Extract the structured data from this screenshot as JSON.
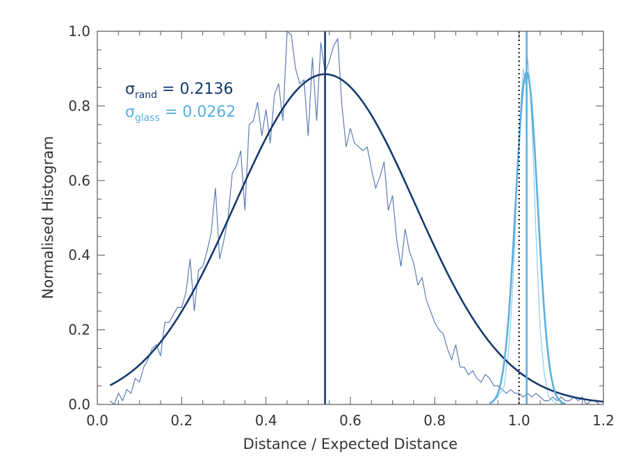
{
  "chart_data": {
    "type": "line",
    "xlabel": "Distance / Expected Distance",
    "ylabel": "Normalised Histogram",
    "xlim": [
      0.0,
      1.2
    ],
    "ylim": [
      0.0,
      1.0
    ],
    "x_ticks": [
      "0.0",
      "0.2",
      "0.4",
      "0.6",
      "0.8",
      "1.0",
      "1.2"
    ],
    "y_ticks": [
      "0.0",
      "0.2",
      "0.4",
      "0.6",
      "0.8",
      "1.0"
    ],
    "colors": {
      "rand": "#14386e",
      "glass": "#5aaede",
      "rand_hist": "#5a7ab4",
      "glass_hist": "#8ec8ec",
      "frame": "#555555"
    },
    "annotations": [
      {
        "symbol": "σ",
        "subscript": "rand",
        "text": " = 0.2136",
        "series": "rand"
      },
      {
        "symbol": "σ",
        "subscript": "glass",
        "text": " = 0.0262",
        "series": "glass"
      }
    ],
    "reference_line": {
      "x": 1.0,
      "style": "dotted",
      "color": "#000000"
    },
    "series": [
      {
        "name": "rand histogram",
        "style": "thin",
        "x": [
          0.03,
          0.04,
          0.05,
          0.06,
          0.07,
          0.08,
          0.09,
          0.1,
          0.11,
          0.12,
          0.13,
          0.14,
          0.15,
          0.16,
          0.17,
          0.18,
          0.19,
          0.2,
          0.21,
          0.22,
          0.23,
          0.24,
          0.25,
          0.26,
          0.27,
          0.28,
          0.29,
          0.3,
          0.31,
          0.32,
          0.33,
          0.34,
          0.35,
          0.36,
          0.37,
          0.38,
          0.39,
          0.4,
          0.41,
          0.42,
          0.43,
          0.44,
          0.45,
          0.46,
          0.47,
          0.48,
          0.49,
          0.5,
          0.51,
          0.52,
          0.53,
          0.54,
          0.55,
          0.56,
          0.57,
          0.58,
          0.59,
          0.6,
          0.61,
          0.62,
          0.63,
          0.64,
          0.65,
          0.66,
          0.67,
          0.68,
          0.69,
          0.7,
          0.71,
          0.72,
          0.73,
          0.74,
          0.75,
          0.76,
          0.77,
          0.78,
          0.79,
          0.8,
          0.81,
          0.82,
          0.83,
          0.84,
          0.85,
          0.86,
          0.87,
          0.88,
          0.89,
          0.9,
          0.91,
          0.92,
          0.93,
          0.94,
          0.95,
          0.96,
          0.97,
          0.98,
          0.99,
          1.0,
          1.01,
          1.02,
          1.03,
          1.04,
          1.05,
          1.06,
          1.07,
          1.08,
          1.09,
          1.1,
          1.11,
          1.12,
          1.13,
          1.14,
          1.15,
          1.16,
          1.17,
          1.18,
          1.19,
          1.2
        ],
        "y": [
          0.01,
          0.0,
          0.03,
          0.01,
          0.04,
          0.03,
          0.07,
          0.06,
          0.1,
          0.12,
          0.15,
          0.16,
          0.13,
          0.22,
          0.22,
          0.24,
          0.26,
          0.26,
          0.3,
          0.39,
          0.25,
          0.36,
          0.37,
          0.41,
          0.46,
          0.58,
          0.39,
          0.44,
          0.5,
          0.62,
          0.64,
          0.68,
          0.52,
          0.75,
          0.76,
          0.81,
          0.72,
          0.79,
          0.7,
          0.83,
          0.86,
          0.76,
          1.0,
          0.99,
          0.9,
          0.86,
          0.87,
          0.72,
          0.93,
          0.76,
          0.97,
          0.89,
          0.92,
          0.96,
          0.98,
          0.8,
          0.69,
          0.74,
          0.7,
          0.69,
          0.68,
          0.69,
          0.63,
          0.58,
          0.61,
          0.65,
          0.52,
          0.56,
          0.44,
          0.37,
          0.47,
          0.41,
          0.38,
          0.32,
          0.34,
          0.28,
          0.25,
          0.22,
          0.2,
          0.19,
          0.15,
          0.12,
          0.16,
          0.1,
          0.1,
          0.08,
          0.09,
          0.07,
          0.06,
          0.08,
          0.07,
          0.05,
          0.05,
          0.04,
          0.03,
          0.04,
          0.03,
          0.03,
          0.02,
          0.03,
          0.02,
          0.03,
          0.02,
          0.01,
          0.01,
          0.02,
          0.01,
          0.02,
          0.01,
          0.01,
          0.02,
          0.01,
          0.02,
          0.0,
          0.01,
          0.01,
          0.0,
          0.0
        ]
      },
      {
        "name": "rand gaussian fit",
        "style": "thick",
        "amplitude": 0.885,
        "mean": 0.54,
        "sigma": 0.2136,
        "x_range": [
          0.03,
          1.2
        ]
      },
      {
        "name": "rand mean",
        "style": "vertical",
        "x": 0.54
      },
      {
        "name": "glass histogram",
        "style": "thin",
        "x": [
          0.93,
          0.94,
          0.95,
          0.96,
          0.965,
          0.97,
          0.975,
          0.98,
          0.985,
          0.99,
          0.995,
          1.0,
          1.005,
          1.01,
          1.015,
          1.02,
          1.025,
          1.03,
          1.035,
          1.04,
          1.045,
          1.05,
          1.055,
          1.06,
          1.065,
          1.07,
          1.08,
          1.09,
          1.1
        ],
        "y": [
          0.0,
          0.01,
          0.02,
          0.04,
          0.05,
          0.1,
          0.14,
          0.22,
          0.32,
          0.44,
          0.6,
          0.7,
          0.82,
          0.9,
          0.86,
          0.93,
          0.87,
          0.76,
          0.62,
          0.46,
          0.33,
          0.2,
          0.14,
          0.08,
          0.05,
          0.02,
          0.01,
          0.0,
          0.0
        ]
      },
      {
        "name": "glass gaussian fit",
        "style": "thick",
        "amplitude": 0.89,
        "mean": 1.018,
        "sigma": 0.0262,
        "x_range": [
          0.93,
          1.11
        ]
      },
      {
        "name": "glass mean",
        "style": "vertical",
        "x": 1.018
      }
    ]
  }
}
